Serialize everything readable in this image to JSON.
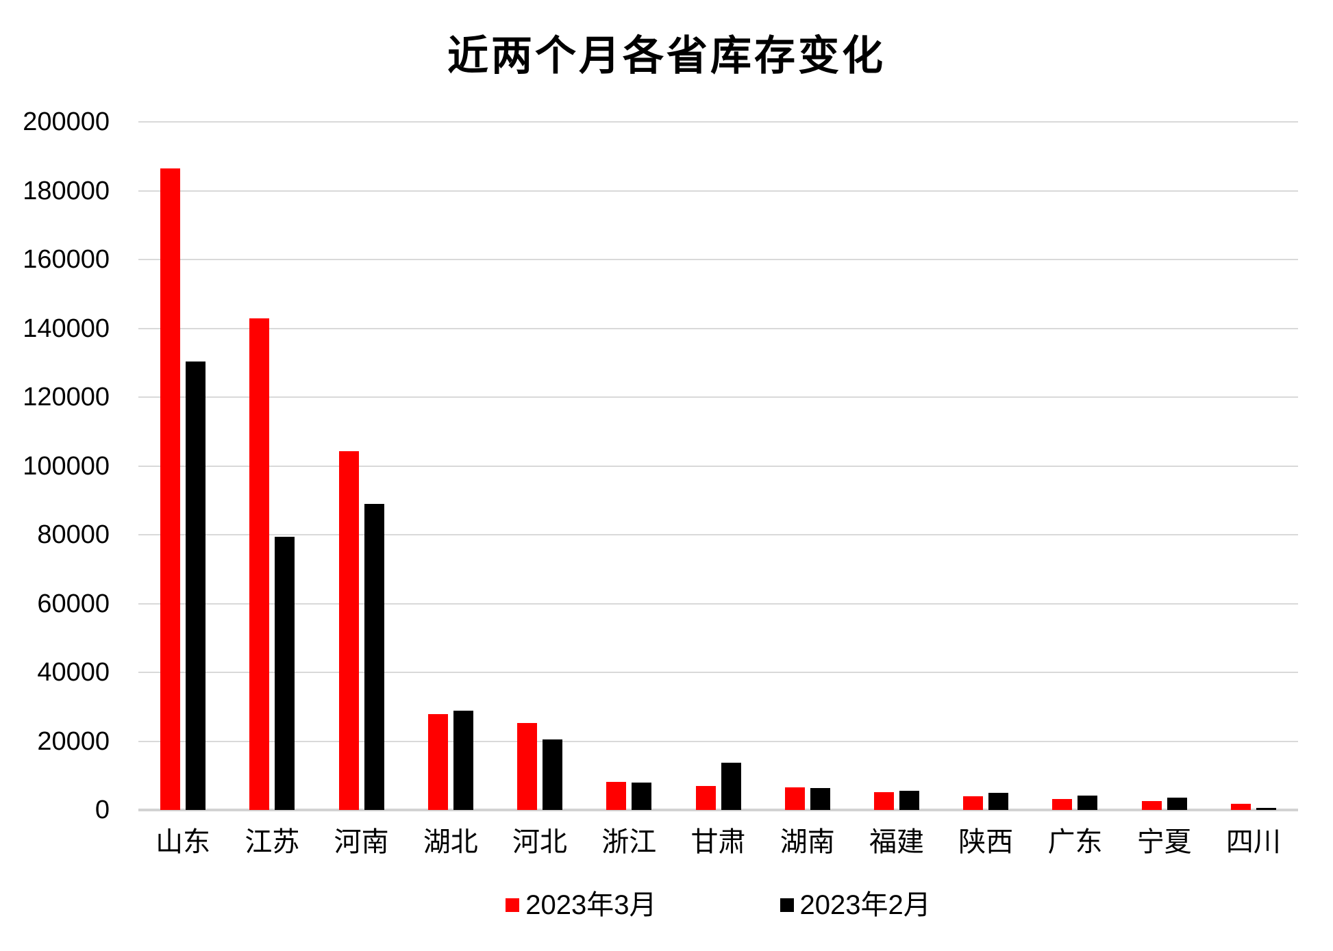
{
  "title": "近两个月各省库存变化",
  "colors": {
    "background": "#FFFFFF",
    "gridline": "#D9D9D9",
    "axis_line": "#D2D2D2",
    "text": "#000000",
    "series_march": "#FF0000",
    "series_february": "#000000"
  },
  "chart_data": {
    "type": "bar",
    "title": "近两个月各省库存变化",
    "categories": [
      "山东",
      "江苏",
      "河南",
      "湖北",
      "河北",
      "浙江",
      "甘肃",
      "湖南",
      "福建",
      "陕西",
      "广东",
      "宁夏",
      "四川"
    ],
    "series": [
      {
        "name": "2023年3月",
        "color": "#FF0000",
        "values": [
          186500,
          142900,
          104300,
          27800,
          25300,
          8200,
          7000,
          6500,
          5100,
          4000,
          3100,
          2500,
          1700
        ]
      },
      {
        "name": "2023年2月",
        "color": "#000000",
        "values": [
          130300,
          79400,
          88900,
          28900,
          20500,
          8000,
          13700,
          6300,
          5500,
          4900,
          4100,
          3500,
          600
        ]
      }
    ],
    "xlabel": "",
    "ylabel": "",
    "ylim": [
      0,
      200000
    ],
    "y_tick_step": 20000,
    "y_ticks": [
      0,
      20000,
      40000,
      60000,
      80000,
      100000,
      120000,
      140000,
      160000,
      180000,
      200000
    ],
    "grid": true,
    "legend_position": "bottom"
  }
}
